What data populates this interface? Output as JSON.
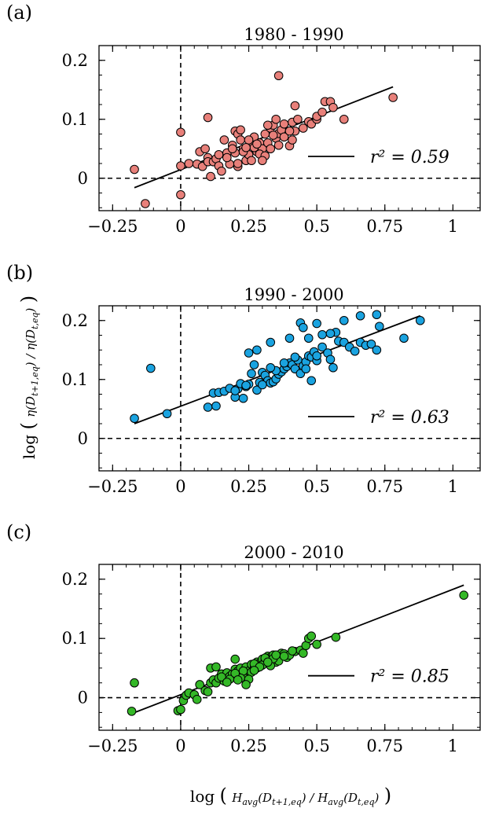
{
  "figure": {
    "xlabel": "log(H_avg(D_t+1,eq) / H_avg(D_t,eq))",
    "ylabel": "log(η(D_t+1,eq) / η(D_t,eq))"
  },
  "chart_data": [
    {
      "type": "scatter",
      "panel_label": "(a)",
      "title": "1980 - 1990",
      "color": "#e8807a",
      "r2_label": "r² = 0.59",
      "xlim": [
        -0.3,
        1.1
      ],
      "ylim": [
        -0.055,
        0.225
      ],
      "x_ticks": [
        -0.25,
        0,
        0.25,
        0.5,
        0.75,
        1
      ],
      "x_tick_labels": [
        "−0.25",
        "0",
        "0.25",
        "0.5",
        "0.75",
        "1"
      ],
      "y_ticks": [
        0,
        0.1,
        0.2
      ],
      "y_tick_labels": [
        "0",
        "0.1",
        "0.2"
      ],
      "fit_line": {
        "x": [
          -0.17,
          0.78
        ],
        "y": [
          -0.016,
          0.155
        ]
      },
      "points": [
        [
          -0.17,
          0.015
        ],
        [
          -0.13,
          -0.043
        ],
        [
          0,
          0.021
        ],
        [
          0,
          0.078
        ],
        [
          0,
          -0.028
        ],
        [
          0.1,
          0.103
        ],
        [
          0.03,
          0.025
        ],
        [
          0.06,
          0.024
        ],
        [
          0.08,
          0.02
        ],
        [
          0.1,
          0.035
        ],
        [
          0.1,
          0.028
        ],
        [
          0.11,
          0.003
        ],
        [
          0.12,
          0.028
        ],
        [
          0.13,
          0.033
        ],
        [
          0.14,
          0.021
        ],
        [
          0.14,
          0.04
        ],
        [
          0.17,
          0.043
        ],
        [
          0.18,
          0.024
        ],
        [
          0.19,
          0.056
        ],
        [
          0.2,
          0.08
        ],
        [
          0.21,
          0.075
        ],
        [
          0.22,
          0.065
        ],
        [
          0.23,
          0.05
        ],
        [
          0.24,
          0.03
        ],
        [
          0.25,
          0.04
        ],
        [
          0.26,
          0.056
        ],
        [
          0.27,
          0.07
        ],
        [
          0.28,
          0.045
        ],
        [
          0.29,
          0.06
        ],
        [
          0.3,
          0.05
        ],
        [
          0.31,
          0.075
        ],
        [
          0.32,
          0.06
        ],
        [
          0.33,
          0.085
        ],
        [
          0.34,
          0.09
        ],
        [
          0.35,
          0.068
        ],
        [
          0.36,
          0.076
        ],
        [
          0.37,
          0.082
        ],
        [
          0.38,
          0.07
        ],
        [
          0.4,
          0.055
        ],
        [
          0.41,
          0.095
        ],
        [
          0.42,
          0.08
        ],
        [
          0.43,
          0.1
        ],
        [
          0.36,
          0.174
        ],
        [
          0.42,
          0.123
        ],
        [
          0.47,
          0.096
        ],
        [
          0.48,
          0.092
        ],
        [
          0.5,
          0.1
        ],
        [
          0.53,
          0.13
        ],
        [
          0.55,
          0.13
        ],
        [
          0.56,
          0.12
        ],
        [
          0.6,
          0.1
        ],
        [
          0.78,
          0.137
        ],
        [
          0.07,
          0.045
        ],
        [
          0.09,
          0.05
        ],
        [
          0.15,
          0.012
        ],
        [
          0.16,
          0.065
        ],
        [
          0.2,
          0.043
        ],
        [
          0.22,
          0.082
        ],
        [
          0.25,
          0.065
        ],
        [
          0.26,
          0.03
        ],
        [
          0.29,
          0.041
        ],
        [
          0.33,
          0.05
        ],
        [
          0.35,
          0.1
        ],
        [
          0.38,
          0.092
        ],
        [
          0.21,
          0.02
        ],
        [
          0.27,
          0.052
        ],
        [
          0.31,
          0.038
        ],
        [
          0.34,
          0.073
        ],
        [
          0.19,
          0.05
        ],
        [
          0.23,
          0.045
        ],
        [
          0.24,
          0.052
        ],
        [
          0.32,
          0.09
        ],
        [
          0.36,
          0.056
        ],
        [
          0.41,
          0.065
        ],
        [
          0.45,
          0.085
        ],
        [
          0.5,
          0.105
        ],
        [
          0.52,
          0.112
        ],
        [
          0.3,
          0.03
        ],
        [
          0.17,
          0.035
        ],
        [
          0.21,
          0.025
        ],
        [
          0.28,
          0.058
        ],
        [
          0.4,
          0.08
        ]
      ]
    },
    {
      "type": "scatter",
      "panel_label": "(b)",
      "title": "1990 - 2000",
      "color": "#1aa3e0",
      "r2_label": "r² = 0.63",
      "xlim": [
        -0.3,
        1.1
      ],
      "ylim": [
        -0.055,
        0.225
      ],
      "x_ticks": [
        -0.25,
        0,
        0.25,
        0.5,
        0.75,
        1
      ],
      "x_tick_labels": [
        "−0.25",
        "0",
        "0.25",
        "0.5",
        "0.75",
        "1"
      ],
      "y_ticks": [
        0,
        0.1,
        0.2
      ],
      "y_tick_labels": [
        "0",
        "0.1",
        "0.2"
      ],
      "fit_line": {
        "x": [
          -0.17,
          0.88
        ],
        "y": [
          0.025,
          0.208
        ]
      },
      "points": [
        [
          -0.17,
          0.034
        ],
        [
          -0.11,
          0.119
        ],
        [
          -0.05,
          0.042
        ],
        [
          0.1,
          0.053
        ],
        [
          0.12,
          0.077
        ],
        [
          0.13,
          0.055
        ],
        [
          0.14,
          0.078
        ],
        [
          0.16,
          0.08
        ],
        [
          0.18,
          0.085
        ],
        [
          0.2,
          0.07
        ],
        [
          0.21,
          0.084
        ],
        [
          0.22,
          0.093
        ],
        [
          0.23,
          0.068
        ],
        [
          0.24,
          0.088
        ],
        [
          0.25,
          0.092
        ],
        [
          0.26,
          0.11
        ],
        [
          0.27,
          0.125
        ],
        [
          0.28,
          0.082
        ],
        [
          0.29,
          0.095
        ],
        [
          0.3,
          0.112
        ],
        [
          0.31,
          0.107
        ],
        [
          0.32,
          0.098
        ],
        [
          0.33,
          0.094
        ],
        [
          0.34,
          0.096
        ],
        [
          0.35,
          0.101
        ],
        [
          0.36,
          0.109
        ],
        [
          0.37,
          0.113
        ],
        [
          0.38,
          0.118
        ],
        [
          0.39,
          0.122
        ],
        [
          0.4,
          0.128
        ],
        [
          0.41,
          0.125
        ],
        [
          0.42,
          0.118
        ],
        [
          0.43,
          0.133
        ],
        [
          0.44,
          0.11
        ],
        [
          0.45,
          0.123
        ],
        [
          0.46,
          0.13
        ],
        [
          0.47,
          0.14
        ],
        [
          0.48,
          0.138
        ],
        [
          0.49,
          0.147
        ],
        [
          0.5,
          0.132
        ],
        [
          0.52,
          0.155
        ],
        [
          0.54,
          0.145
        ],
        [
          0.55,
          0.134
        ],
        [
          0.56,
          0.12
        ],
        [
          0.58,
          0.165
        ],
        [
          0.6,
          0.163
        ],
        [
          0.62,
          0.155
        ],
        [
          0.64,
          0.148
        ],
        [
          0.66,
          0.163
        ],
        [
          0.68,
          0.158
        ],
        [
          0.7,
          0.16
        ],
        [
          0.72,
          0.15
        ],
        [
          0.44,
          0.196
        ],
        [
          0.45,
          0.188
        ],
        [
          0.5,
          0.195
        ],
        [
          0.57,
          0.18
        ],
        [
          0.6,
          0.2
        ],
        [
          0.66,
          0.208
        ],
        [
          0.72,
          0.21
        ],
        [
          0.73,
          0.19
        ],
        [
          0.82,
          0.17
        ],
        [
          0.88,
          0.2
        ],
        [
          0.25,
          0.145
        ],
        [
          0.28,
          0.15
        ],
        [
          0.33,
          0.163
        ],
        [
          0.4,
          0.17
        ],
        [
          0.47,
          0.17
        ],
        [
          0.52,
          0.176
        ],
        [
          0.55,
          0.178
        ],
        [
          0.2,
          0.081
        ],
        [
          0.3,
          0.091
        ],
        [
          0.35,
          0.115
        ],
        [
          0.42,
          0.138
        ],
        [
          0.5,
          0.14
        ],
        [
          0.38,
          0.128
        ],
        [
          0.46,
          0.118
        ],
        [
          0.24,
          0.09
        ],
        [
          0.33,
          0.12
        ],
        [
          0.48,
          0.098
        ]
      ]
    },
    {
      "type": "scatter",
      "panel_label": "(c)",
      "title": "2000 - 2010",
      "color": "#34b827",
      "r2_label": "r² = 0.85",
      "xlim": [
        -0.3,
        1.1
      ],
      "ylim": [
        -0.055,
        0.225
      ],
      "x_ticks": [
        -0.25,
        0,
        0.25,
        0.5,
        0.75,
        1
      ],
      "x_tick_labels": [
        "−0.25",
        "0",
        "0.25",
        "0.5",
        "0.75",
        "1"
      ],
      "y_ticks": [
        0,
        0.1,
        0.2
      ],
      "y_tick_labels": [
        "0",
        "0.1",
        "0.2"
      ],
      "fit_line": {
        "x": [
          -0.18,
          1.04
        ],
        "y": [
          -0.027,
          0.19
        ]
      },
      "points": [
        [
          -0.18,
          -0.023
        ],
        [
          -0.17,
          0.025
        ],
        [
          -0.01,
          -0.022
        ],
        [
          0,
          -0.02
        ],
        [
          0.01,
          -0.005
        ],
        [
          0.02,
          0.004
        ],
        [
          0.03,
          0.008
        ],
        [
          0.05,
          0.005
        ],
        [
          0.06,
          -0.003
        ],
        [
          0.07,
          0.022
        ],
        [
          0.09,
          0.012
        ],
        [
          0.1,
          0.01
        ],
        [
          0.11,
          0.025
        ],
        [
          0.12,
          0.03
        ],
        [
          0.13,
          0.025
        ],
        [
          0.14,
          0.033
        ],
        [
          0.15,
          0.04
        ],
        [
          0.16,
          0.028
        ],
        [
          0.17,
          0.042
        ],
        [
          0.18,
          0.036
        ],
        [
          0.19,
          0.04
        ],
        [
          0.2,
          0.048
        ],
        [
          0.21,
          0.045
        ],
        [
          0.22,
          0.05
        ],
        [
          0.23,
          0.038
        ],
        [
          0.24,
          0.052
        ],
        [
          0.25,
          0.045
        ],
        [
          0.26,
          0.056
        ],
        [
          0.27,
          0.05
        ],
        [
          0.28,
          0.06
        ],
        [
          0.29,
          0.058
        ],
        [
          0.3,
          0.065
        ],
        [
          0.31,
          0.062
        ],
        [
          0.32,
          0.07
        ],
        [
          0.33,
          0.068
        ],
        [
          0.34,
          0.072
        ],
        [
          0.35,
          0.06
        ],
        [
          0.36,
          0.07
        ],
        [
          0.37,
          0.075
        ],
        [
          0.38,
          0.074
        ],
        [
          0.39,
          0.068
        ],
        [
          0.4,
          0.072
        ],
        [
          0.42,
          0.078
        ],
        [
          0.44,
          0.08
        ],
        [
          0.45,
          0.075
        ],
        [
          0.46,
          0.088
        ],
        [
          0.47,
          0.1
        ],
        [
          0.48,
          0.104
        ],
        [
          0.5,
          0.09
        ],
        [
          0.57,
          0.102
        ],
        [
          1.04,
          0.173
        ],
        [
          0.11,
          0.05
        ],
        [
          0.13,
          0.052
        ],
        [
          0.2,
          0.065
        ],
        [
          0.23,
          0.045
        ],
        [
          0.26,
          0.043
        ],
        [
          0.3,
          0.055
        ],
        [
          0.33,
          0.054
        ],
        [
          0.36,
          0.062
        ],
        [
          0.18,
          0.031
        ],
        [
          0.22,
          0.033
        ],
        [
          0.25,
          0.031
        ],
        [
          0.28,
          0.05
        ],
        [
          0.31,
          0.067
        ],
        [
          0.34,
          0.066
        ],
        [
          0.15,
          0.035
        ],
        [
          0.2,
          0.041
        ],
        [
          0.27,
          0.057
        ],
        [
          0.38,
          0.07
        ],
        [
          0.41,
          0.079
        ],
        [
          0.21,
          0.03
        ],
        [
          0.24,
          0.022
        ],
        [
          0.29,
          0.052
        ],
        [
          0.32,
          0.06
        ],
        [
          0.35,
          0.072
        ],
        [
          0.17,
          0.026
        ],
        [
          0.27,
          0.046
        ]
      ]
    }
  ]
}
